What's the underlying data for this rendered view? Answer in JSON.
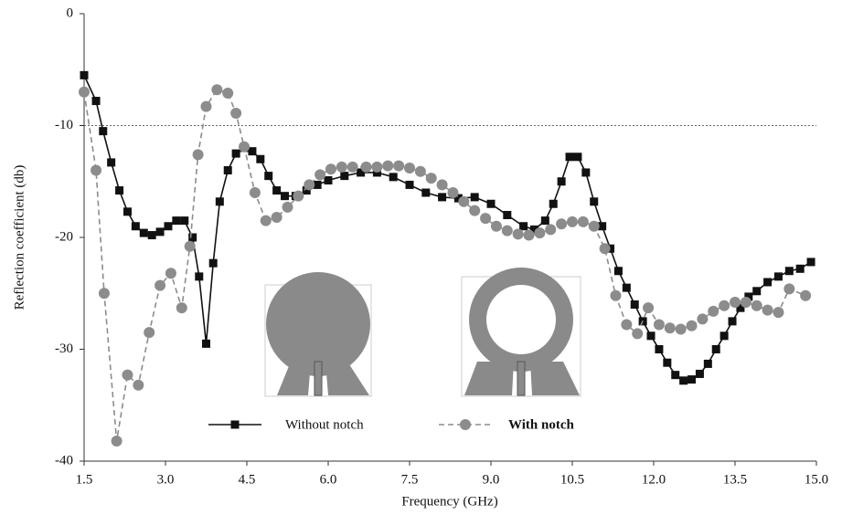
{
  "chart_data": {
    "type": "line",
    "xlabel": "Frequency (GHz)",
    "ylabel": "Reflection coefficient (db)",
    "xlim": [
      1.5,
      15.0
    ],
    "ylim": [
      -40,
      0
    ],
    "xticks": [
      1.5,
      {
        "value": 3,
        "label": "3.0"
      },
      4.5,
      {
        "value": 6,
        "label": "6.0"
      },
      7.5,
      {
        "value": 9,
        "label": "9.0"
      },
      10.5,
      {
        "value": 12,
        "label": "12.0"
      },
      13.5,
      {
        "value": 15,
        "label": "15.0"
      }
    ],
    "yticks": [
      0,
      -10,
      -20,
      -30,
      -40
    ],
    "hline": -10,
    "series": [
      {
        "name": "Without notch",
        "color": "#111111",
        "marker": "square",
        "dash": false,
        "x": [
          1.5,
          1.72,
          1.85,
          2.0,
          2.15,
          2.3,
          2.45,
          2.6,
          2.75,
          2.9,
          3.05,
          3.2,
          3.35,
          3.5,
          3.62,
          3.75,
          3.88,
          4.0,
          4.15,
          4.3,
          4.45,
          4.6,
          4.75,
          4.9,
          5.05,
          5.2,
          5.4,
          5.6,
          5.8,
          6.0,
          6.3,
          6.6,
          6.9,
          7.2,
          7.5,
          7.8,
          8.1,
          8.4,
          8.7,
          9.0,
          9.3,
          9.6,
          9.8,
          10.0,
          10.15,
          10.3,
          10.45,
          10.6,
          10.75,
          10.9,
          11.05,
          11.2,
          11.35,
          11.5,
          11.65,
          11.8,
          11.95,
          12.1,
          12.25,
          12.4,
          12.55,
          12.7,
          12.85,
          13.0,
          13.15,
          13.3,
          13.45,
          13.6,
          13.75,
          13.9,
          14.1,
          14.3,
          14.5,
          14.7,
          14.9
        ],
        "values": [
          -5.5,
          -7.8,
          -10.5,
          -13.3,
          -15.8,
          -17.7,
          -19,
          -19.6,
          -19.8,
          -19.5,
          -19,
          -18.5,
          -18.5,
          -20,
          -23.5,
          -29.5,
          -22.3,
          -16.8,
          -14,
          -12.5,
          -12,
          -12.3,
          -13,
          -14.5,
          -15.8,
          -16.3,
          -16.3,
          -15.8,
          -15.3,
          -14.9,
          -14.5,
          -14.2,
          -14.2,
          -14.6,
          -15.3,
          -16,
          -16.4,
          -16.5,
          -16.4,
          -17,
          -18,
          -19,
          -19.3,
          -18.5,
          -17,
          -15,
          -12.8,
          -12.8,
          -14.2,
          -16.8,
          -19,
          -21,
          -23,
          -24.5,
          -26,
          -27.5,
          -28.8,
          -30,
          -31.2,
          -32.3,
          -32.8,
          -32.7,
          -32.2,
          -31.3,
          -30,
          -28.8,
          -27.5,
          -26.3,
          -25.3,
          -24.8,
          -24,
          -23.5,
          -23,
          -22.8,
          -22.2
        ]
      },
      {
        "name": "With notch",
        "color": "#8c8c8c",
        "marker": "circle",
        "dash": true,
        "x": [
          1.5,
          1.72,
          1.87,
          2.1,
          2.3,
          2.5,
          2.7,
          2.9,
          3.1,
          3.3,
          3.45,
          3.6,
          3.75,
          3.95,
          4.15,
          4.3,
          4.45,
          4.65,
          4.85,
          5.05,
          5.25,
          5.45,
          5.65,
          5.85,
          6.05,
          6.25,
          6.45,
          6.7,
          6.9,
          7.1,
          7.3,
          7.5,
          7.7,
          7.9,
          8.1,
          8.3,
          8.5,
          8.7,
          8.9,
          9.1,
          9.3,
          9.5,
          9.7,
          9.9,
          10.1,
          10.3,
          10.5,
          10.7,
          10.9,
          11.1,
          11.3,
          11.5,
          11.7,
          11.9,
          12.1,
          12.3,
          12.5,
          12.7,
          12.9,
          13.1,
          13.3,
          13.5,
          13.7,
          13.9,
          14.1,
          14.3,
          14.5,
          14.8
        ],
        "values": [
          -7,
          -14,
          -25,
          -38.2,
          -32.3,
          -33.2,
          -28.5,
          -24.3,
          -23.2,
          -26.3,
          -20.8,
          -12.6,
          -8.3,
          -6.8,
          -7.1,
          -8.9,
          -11.9,
          -16,
          -18.5,
          -18.2,
          -17.3,
          -16.3,
          -15.3,
          -14.4,
          -13.9,
          -13.7,
          -13.7,
          -13.7,
          -13.7,
          -13.6,
          -13.6,
          -13.8,
          -14.1,
          -14.7,
          -15.3,
          -16,
          -16.8,
          -17.6,
          -18.3,
          -19,
          -19.4,
          -19.7,
          -19.8,
          -19.6,
          -19.3,
          -18.8,
          -18.6,
          -18.6,
          -19,
          -21,
          -25.2,
          -27.8,
          -28.6,
          -26.3,
          -27.8,
          -28.1,
          -28.2,
          -27.9,
          -27.3,
          -26.6,
          -26.1,
          -25.8,
          -25.8,
          -26.1,
          -26.5,
          -26.7,
          -24.6,
          -25.2
        ]
      }
    ]
  }
}
